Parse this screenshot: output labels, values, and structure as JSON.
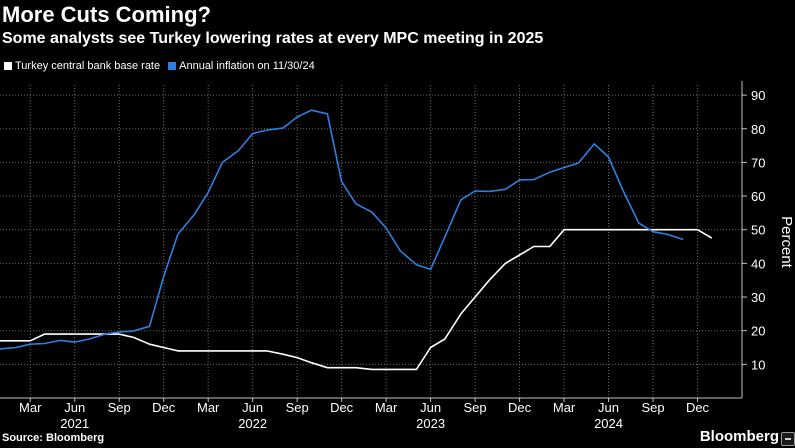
{
  "chart_data": {
    "type": "line",
    "title": "More Cuts Coming?",
    "subtitle": "Some analysts see Turkey lowering rates at every MPC meeting in 2025",
    "source": "Source: Bloomberg",
    "brand": "Bloomberg",
    "ylabel": "Percent",
    "ylim": [
      0,
      93
    ],
    "yticks": [
      10,
      20,
      30,
      40,
      50,
      60,
      70,
      80,
      90
    ],
    "xlim": [
      2020.83,
      2025.0
    ],
    "month_ticks": [
      {
        "label": "Mar",
        "x": 2021.0
      },
      {
        "label": "Jun",
        "x": 2021.25
      },
      {
        "label": "Sep",
        "x": 2021.5
      },
      {
        "label": "Dec",
        "x": 2021.75
      },
      {
        "label": "Mar",
        "x": 2022.0
      },
      {
        "label": "Jun",
        "x": 2022.25
      },
      {
        "label": "Sep",
        "x": 2022.5
      },
      {
        "label": "Dec",
        "x": 2022.75
      },
      {
        "label": "Mar",
        "x": 2023.0
      },
      {
        "label": "Jun",
        "x": 2023.25
      },
      {
        "label": "Sep",
        "x": 2023.5
      },
      {
        "label": "Dec",
        "x": 2023.75
      },
      {
        "label": "Mar",
        "x": 2024.0
      },
      {
        "label": "Jun",
        "x": 2024.25
      },
      {
        "label": "Sep",
        "x": 2024.5
      },
      {
        "label": "Dec",
        "x": 2024.75
      }
    ],
    "year_ticks": [
      {
        "label": "2021",
        "x": 2021.25
      },
      {
        "label": "2022",
        "x": 2022.25
      },
      {
        "label": "2023",
        "x": 2023.25
      },
      {
        "label": "2024",
        "x": 2024.25
      }
    ],
    "series": [
      {
        "name": "Turkey central bank base rate",
        "color": "#ffffff",
        "x": [
          2020.83,
          2020.92,
          2021.0,
          2021.08,
          2021.17,
          2021.25,
          2021.33,
          2021.42,
          2021.5,
          2021.58,
          2021.67,
          2021.75,
          2021.83,
          2021.92,
          2022.0,
          2022.08,
          2022.17,
          2022.25,
          2022.33,
          2022.42,
          2022.5,
          2022.58,
          2022.67,
          2022.75,
          2022.83,
          2022.92,
          2023.0,
          2023.08,
          2023.17,
          2023.25,
          2023.33,
          2023.42,
          2023.5,
          2023.58,
          2023.67,
          2023.75,
          2023.83,
          2023.92,
          2024.0,
          2024.08,
          2024.17,
          2024.25,
          2024.33,
          2024.42,
          2024.5,
          2024.58,
          2024.67,
          2024.75,
          2024.83
        ],
        "values": [
          17,
          17,
          17,
          19,
          19,
          19,
          19,
          19,
          19,
          18,
          16,
          15,
          14,
          14,
          14,
          14,
          14,
          14,
          14,
          13,
          12,
          10.5,
          9,
          9,
          9,
          8.5,
          8.5,
          8.5,
          8.5,
          15,
          17.5,
          25,
          30,
          35,
          40,
          42.5,
          45,
          45,
          50,
          50,
          50,
          50,
          50,
          50,
          50,
          50,
          50,
          50,
          47.5
        ]
      },
      {
        "name": "Annual inflation on 11/30/24",
        "color": "#2f7fe0",
        "x": [
          2020.83,
          2020.92,
          2021.0,
          2021.08,
          2021.17,
          2021.25,
          2021.33,
          2021.42,
          2021.5,
          2021.58,
          2021.67,
          2021.75,
          2021.83,
          2021.92,
          2022.0,
          2022.08,
          2022.17,
          2022.25,
          2022.33,
          2022.42,
          2022.5,
          2022.58,
          2022.67,
          2022.75,
          2022.83,
          2022.92,
          2023.0,
          2023.08,
          2023.17,
          2023.25,
          2023.33,
          2023.42,
          2023.5,
          2023.58,
          2023.67,
          2023.75,
          2023.83,
          2023.92,
          2024.0,
          2024.08,
          2024.17,
          2024.25,
          2024.33,
          2024.42,
          2024.5,
          2024.58,
          2024.67
        ],
        "values": [
          14.6,
          15.0,
          16.0,
          16.2,
          17.1,
          16.6,
          17.5,
          19.0,
          19.6,
          19.9,
          21.3,
          36.1,
          48.7,
          54.4,
          61.1,
          70.0,
          73.5,
          78.6,
          79.6,
          80.2,
          83.5,
          85.5,
          84.4,
          64.3,
          57.7,
          55.2,
          50.5,
          43.7,
          39.6,
          38.2,
          47.8,
          58.9,
          61.5,
          61.4,
          62.0,
          64.8,
          64.9,
          67.1,
          68.5,
          69.8,
          75.5,
          71.6,
          61.8,
          51.97,
          49.4,
          48.6,
          47.1
        ]
      }
    ]
  }
}
